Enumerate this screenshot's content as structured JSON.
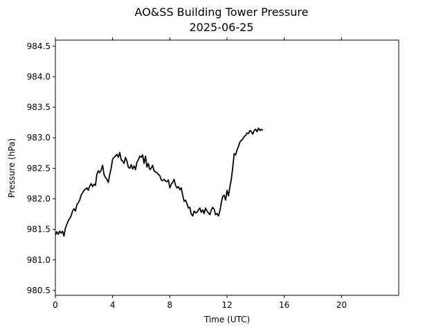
{
  "chart_data": {
    "type": "line",
    "title": "AO&SS Building Tower Pressure",
    "subtitle": "2025-06-25",
    "xlabel": "Time (UTC)",
    "ylabel": "Pressure (hPa)",
    "xlim": [
      0,
      24
    ],
    "ylim": [
      980.42,
      984.6
    ],
    "xticks": [
      0,
      4,
      8,
      12,
      16,
      20
    ],
    "xtick_labels": [
      "0",
      "4",
      "8",
      "12",
      "16",
      "20"
    ],
    "yticks": [
      980.5,
      981.0,
      981.5,
      982.0,
      982.5,
      983.0,
      983.5,
      984.0,
      984.5
    ],
    "ytick_labels": [
      "980.5",
      "981.0",
      "981.5",
      "982.0",
      "982.5",
      "983.0",
      "983.5",
      "984.0",
      "984.5"
    ],
    "grid": false,
    "line_color": "#000000",
    "series": [
      {
        "x": [
          0.0,
          0.1,
          0.2,
          0.3,
          0.4,
          0.5,
          0.6,
          0.7,
          0.8,
          0.9,
          1.0,
          1.1,
          1.2,
          1.3,
          1.4,
          1.5,
          1.6,
          1.7,
          1.8,
          1.9,
          2.0,
          2.1,
          2.2,
          2.3,
          2.4,
          2.5,
          2.6,
          2.7,
          2.8,
          2.9,
          3.0,
          3.1,
          3.2,
          3.3,
          3.4,
          3.5,
          3.6,
          3.7,
          3.8,
          3.9,
          4.0,
          4.1,
          4.2,
          4.3,
          4.4,
          4.5,
          4.6,
          4.7,
          4.8,
          4.9,
          5.0,
          5.1,
          5.2,
          5.3,
          5.4,
          5.5,
          5.6,
          5.7,
          5.8,
          5.9,
          6.0,
          6.1,
          6.2,
          6.3,
          6.4,
          6.5,
          6.6,
          6.7,
          6.8,
          6.9,
          7.0,
          7.1,
          7.2,
          7.3,
          7.4,
          7.5,
          7.6,
          7.7,
          7.8,
          7.9,
          8.0,
          8.1,
          8.2,
          8.3,
          8.4,
          8.5,
          8.6,
          8.7,
          8.8,
          8.9,
          9.0,
          9.1,
          9.2,
          9.3,
          9.4,
          9.5,
          9.6,
          9.7,
          9.8,
          9.9,
          10.0,
          10.1,
          10.2,
          10.3,
          10.4,
          10.5,
          10.6,
          10.7,
          10.8,
          10.9,
          11.0,
          11.1,
          11.2,
          11.3,
          11.4,
          11.5,
          11.6,
          11.7,
          11.8,
          11.9,
          12.0,
          12.1,
          12.2,
          12.3,
          12.4,
          12.5,
          12.6,
          12.7,
          12.8,
          12.9,
          13.0,
          13.1,
          13.2,
          13.3,
          13.4,
          13.5,
          13.6,
          13.7,
          13.8,
          13.9,
          14.0,
          14.1,
          14.2,
          14.3,
          14.4,
          14.5
        ],
        "y": [
          981.41,
          981.46,
          981.42,
          981.47,
          981.44,
          981.47,
          981.39,
          981.52,
          981.58,
          981.64,
          981.68,
          981.72,
          981.8,
          981.84,
          981.8,
          981.9,
          981.94,
          981.98,
          982.06,
          982.1,
          982.14,
          982.16,
          982.18,
          982.14,
          982.21,
          982.25,
          982.2,
          982.24,
          982.22,
          982.4,
          982.46,
          982.43,
          982.47,
          982.55,
          982.4,
          982.35,
          982.32,
          982.27,
          982.4,
          982.5,
          982.65,
          982.68,
          982.7,
          982.73,
          982.68,
          982.76,
          982.64,
          982.62,
          982.58,
          982.68,
          982.62,
          982.52,
          982.5,
          982.56,
          982.49,
          982.54,
          982.48,
          982.6,
          982.64,
          982.7,
          982.68,
          982.72,
          982.58,
          982.7,
          982.52,
          982.58,
          982.48,
          982.5,
          982.55,
          982.46,
          982.44,
          982.43,
          982.4,
          982.38,
          982.31,
          982.3,
          982.32,
          982.29,
          982.28,
          982.31,
          982.18,
          982.24,
          982.27,
          982.32,
          982.22,
          982.18,
          982.2,
          982.15,
          982.18,
          982.06,
          981.96,
          981.98,
          981.92,
          981.85,
          981.86,
          981.75,
          981.72,
          981.8,
          981.77,
          981.78,
          981.82,
          981.85,
          981.78,
          981.82,
          981.76,
          981.85,
          981.8,
          981.77,
          981.74,
          981.82,
          981.86,
          981.83,
          981.74,
          981.76,
          981.72,
          981.8,
          981.94,
          982.04,
          982.06,
          981.98,
          982.14,
          982.05,
          982.2,
          982.32,
          982.52,
          982.74,
          982.72,
          982.8,
          982.86,
          982.93,
          982.96,
          982.98,
          983.02,
          983.04,
          983.08,
          983.07,
          983.12,
          983.1,
          983.06,
          983.12,
          983.14,
          983.1,
          983.16,
          983.12,
          983.14,
          983.12
        ]
      }
    ]
  }
}
